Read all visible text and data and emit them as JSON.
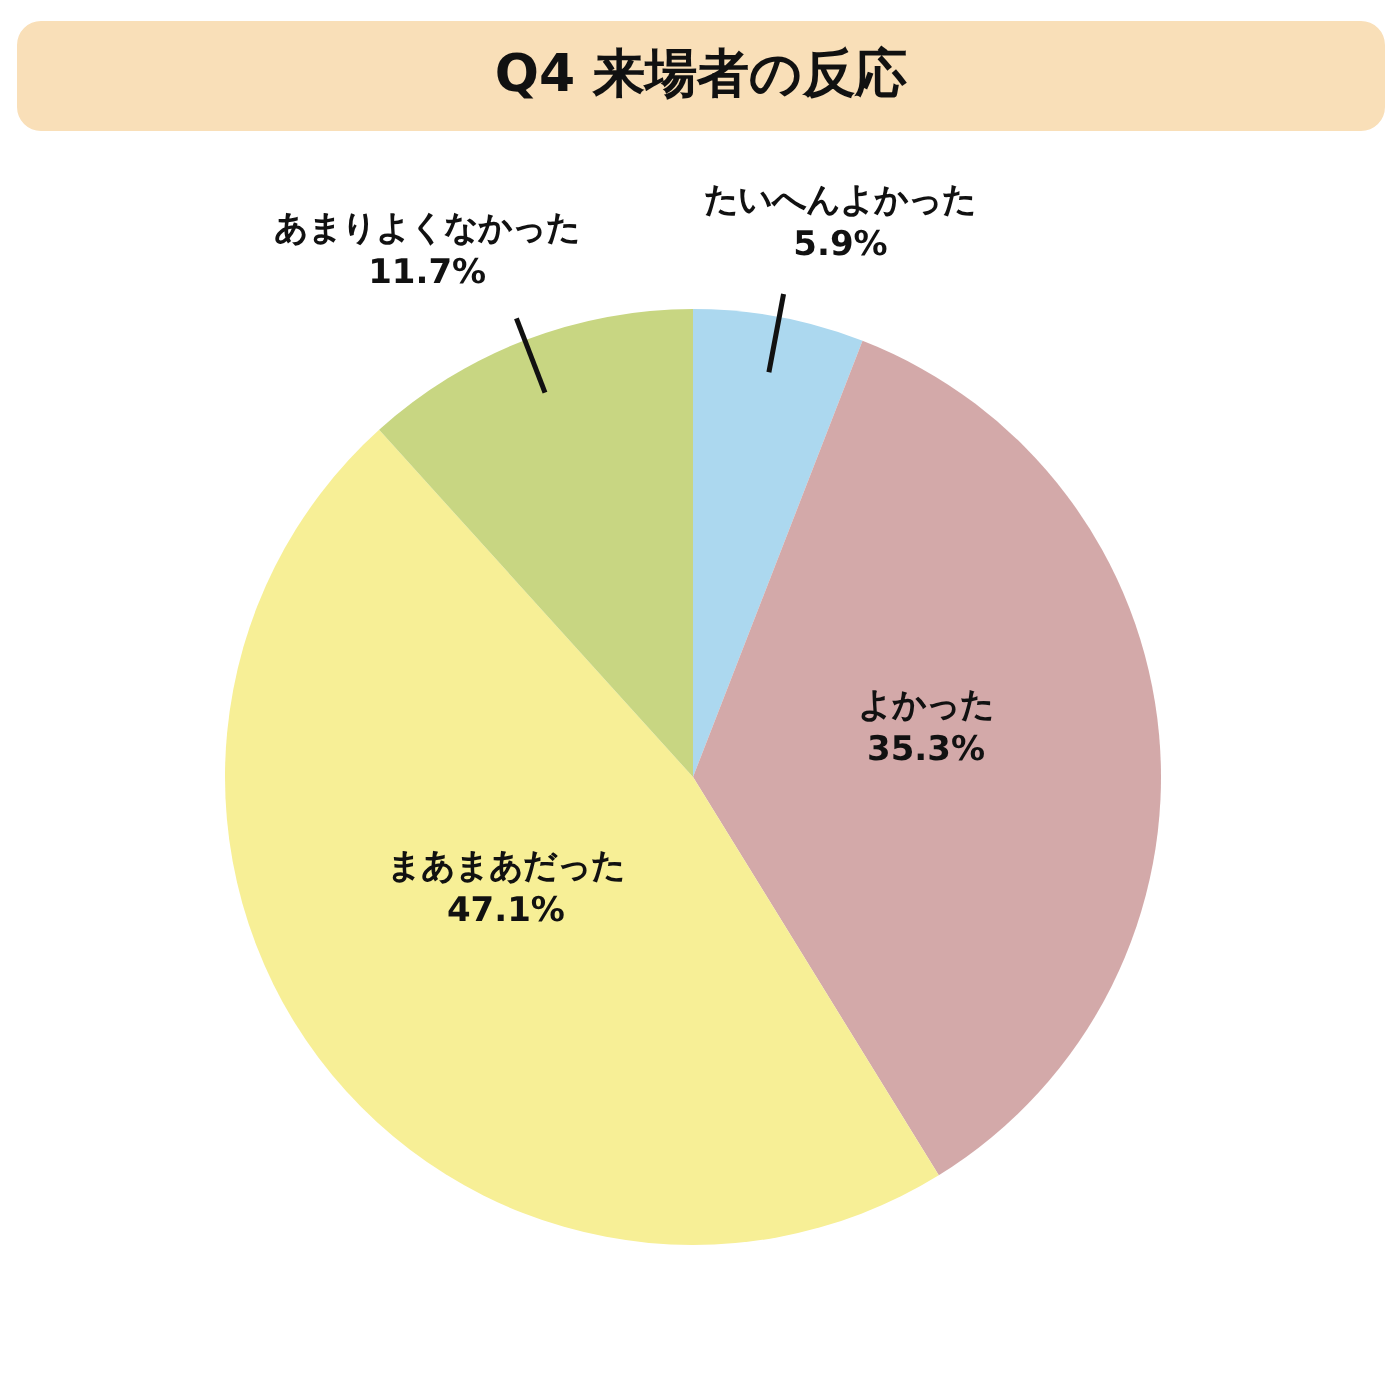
{
  "chart_data": {
    "type": "pie",
    "title": "Q4 来場者の反応",
    "categories": [
      "たいへんよかった",
      "よかった",
      "まあまあだった",
      "あまりよくなかった"
    ],
    "values": [
      5.9,
      35.3,
      47.1,
      11.7
    ],
    "colors": [
      "#acd8ef",
      "#d3a9a9",
      "#f7ef96",
      "#c8d682"
    ],
    "value_labels": [
      "5.9%",
      "35.3%",
      "47.1%",
      "11.7%"
    ]
  }
}
